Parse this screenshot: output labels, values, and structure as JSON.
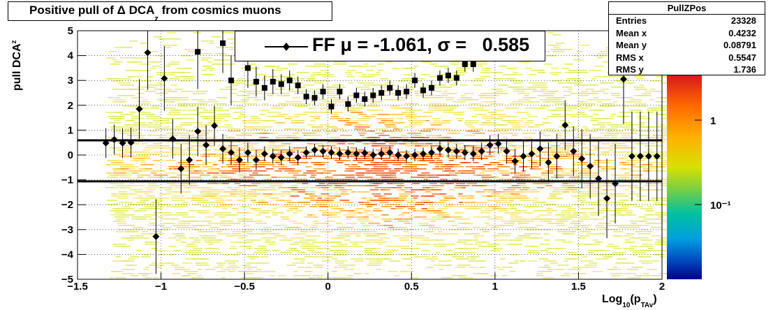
{
  "title": {
    "main": "Positive pull of Δ DCA",
    "sub": "z",
    "tail": " from cosmics muons"
  },
  "stats": {
    "name": "PullZPos",
    "rows": [
      {
        "label": "Entries",
        "value": "23328"
      },
      {
        "label": "Mean x",
        "value": "0.4232"
      },
      {
        "label": "Mean y",
        "value": "0.08791"
      },
      {
        "label": "RMS x",
        "value": "0.5547"
      },
      {
        "label": "RMS y",
        "value": "1.736"
      }
    ]
  },
  "legend": {
    "text": "FF μ = -1.061, σ =   0.585"
  },
  "axes": {
    "ylabel_main": "pull DCA",
    "ylabel_sub": "z",
    "xlabel_main": "Log",
    "xlabel_sub1": "10",
    "xlabel_mid": "(p",
    "xlabel_sub2": "TAv",
    "xlabel_end": ")"
  },
  "colorbar": {
    "labels": [
      "1",
      "10⁻¹"
    ],
    "top_color": "#d7191c",
    "bottom_color": "#00008b"
  },
  "chart_data": {
    "type": "scatter",
    "xlim": [
      -1.5,
      2
    ],
    "ylim": [
      -5,
      5
    ],
    "x_ticks": [
      "−1.5",
      "−1",
      "−0.5",
      "0",
      "0.5",
      "1",
      "1.5",
      "2"
    ],
    "y_ticks": [
      "5",
      "4",
      "3",
      "2",
      "1",
      "0",
      "−1",
      "−2",
      "−3",
      "−4",
      "−5"
    ],
    "fit_lines": [
      0.59,
      -1.06
    ],
    "series": [
      {
        "marker": "diamond",
        "x": [
          -1.33,
          -1.28,
          -1.23,
          -1.18,
          -1.13,
          -1.08,
          -1.03,
          -0.98,
          -0.93,
          -0.88,
          -0.83,
          -0.78,
          -0.73,
          -0.68,
          -0.63,
          -0.58,
          -0.53,
          -0.48,
          -0.43,
          -0.38,
          -0.33,
          -0.28,
          -0.23,
          -0.18,
          -0.13,
          -0.08,
          -0.03,
          0.02,
          0.07,
          0.12,
          0.17,
          0.22,
          0.27,
          0.32,
          0.37,
          0.42,
          0.47,
          0.52,
          0.57,
          0.62,
          0.67,
          0.72,
          0.77,
          0.82,
          0.87,
          0.92,
          0.97,
          1.02,
          1.07,
          1.12,
          1.17,
          1.22,
          1.27,
          1.32,
          1.37,
          1.42,
          1.47,
          1.52,
          1.57,
          1.62,
          1.67,
          1.72,
          1.77,
          1.82,
          1.87,
          1.92,
          1.97
        ],
        "y": [
          0.48,
          0.62,
          0.48,
          0.5,
          1.85,
          4.12,
          -3.28,
          3.08,
          0.65,
          -0.55,
          -0.2,
          0.95,
          0.4,
          1.18,
          0.25,
          0.1,
          -0.2,
          0.1,
          -0.2,
          0.05,
          -0.05,
          -0.1,
          0.05,
          -0.1,
          0.1,
          0.2,
          0.15,
          0.1,
          0.05,
          0.1,
          0.05,
          0.08,
          0.0,
          0.05,
          0.1,
          0.0,
          -0.05,
          0.0,
          0.05,
          0.1,
          0.25,
          0.2,
          0.15,
          0.1,
          0.05,
          0.15,
          0.4,
          0.45,
          0.15,
          -0.25,
          -0.05,
          0.05,
          0.25,
          -0.3,
          -0.05,
          1.2,
          0.15,
          -0.15,
          -0.45,
          -0.95,
          -1.75,
          -1.15,
          3.05,
          -0.05,
          -0.05,
          -0.05,
          -0.05
        ],
        "err": [
          0.6,
          0.6,
          0.6,
          0.6,
          1.2,
          1.5,
          1.5,
          1.3,
          0.8,
          1.0,
          1.0,
          1.0,
          0.8,
          0.8,
          0.6,
          0.5,
          0.5,
          0.4,
          0.4,
          0.3,
          0.3,
          0.3,
          0.3,
          0.3,
          0.25,
          0.25,
          0.25,
          0.25,
          0.25,
          0.25,
          0.25,
          0.25,
          0.25,
          0.25,
          0.25,
          0.25,
          0.25,
          0.25,
          0.25,
          0.25,
          0.3,
          0.3,
          0.3,
          0.3,
          0.3,
          0.35,
          0.4,
          0.4,
          0.5,
          0.5,
          0.6,
          0.6,
          0.7,
          0.8,
          0.9,
          1.0,
          1.0,
          1.2,
          1.3,
          1.5,
          1.6,
          1.6,
          1.8,
          1.8,
          1.8,
          1.8,
          1.8
        ]
      },
      {
        "marker": "square",
        "x": [
          -0.78,
          -0.63,
          -0.58,
          -0.48,
          -0.43,
          -0.38,
          -0.33,
          -0.28,
          -0.23,
          -0.18,
          -0.13,
          -0.08,
          -0.03,
          0.02,
          0.07,
          0.12,
          0.17,
          0.22,
          0.27,
          0.32,
          0.37,
          0.42,
          0.47,
          0.52,
          0.57,
          0.62,
          0.67,
          0.72,
          0.77,
          0.82,
          0.87
        ],
        "y": [
          4.15,
          4.5,
          3.0,
          3.5,
          2.95,
          2.7,
          2.95,
          2.85,
          3.0,
          2.8,
          2.35,
          2.3,
          2.55,
          1.95,
          2.55,
          2.05,
          2.4,
          2.25,
          2.4,
          2.5,
          2.7,
          2.5,
          2.55,
          3.0,
          2.6,
          2.7,
          3.1,
          3.2,
          3.1,
          3.65,
          3.65
        ],
        "err": [
          1.5,
          1.2,
          1.0,
          0.8,
          0.6,
          0.5,
          0.5,
          0.4,
          0.4,
          0.35,
          0.3,
          0.3,
          0.3,
          0.3,
          0.3,
          0.3,
          0.3,
          0.3,
          0.3,
          0.3,
          0.3,
          0.3,
          0.3,
          0.3,
          0.3,
          0.3,
          0.3,
          0.3,
          0.3,
          0.3,
          0.3
        ]
      }
    ]
  }
}
